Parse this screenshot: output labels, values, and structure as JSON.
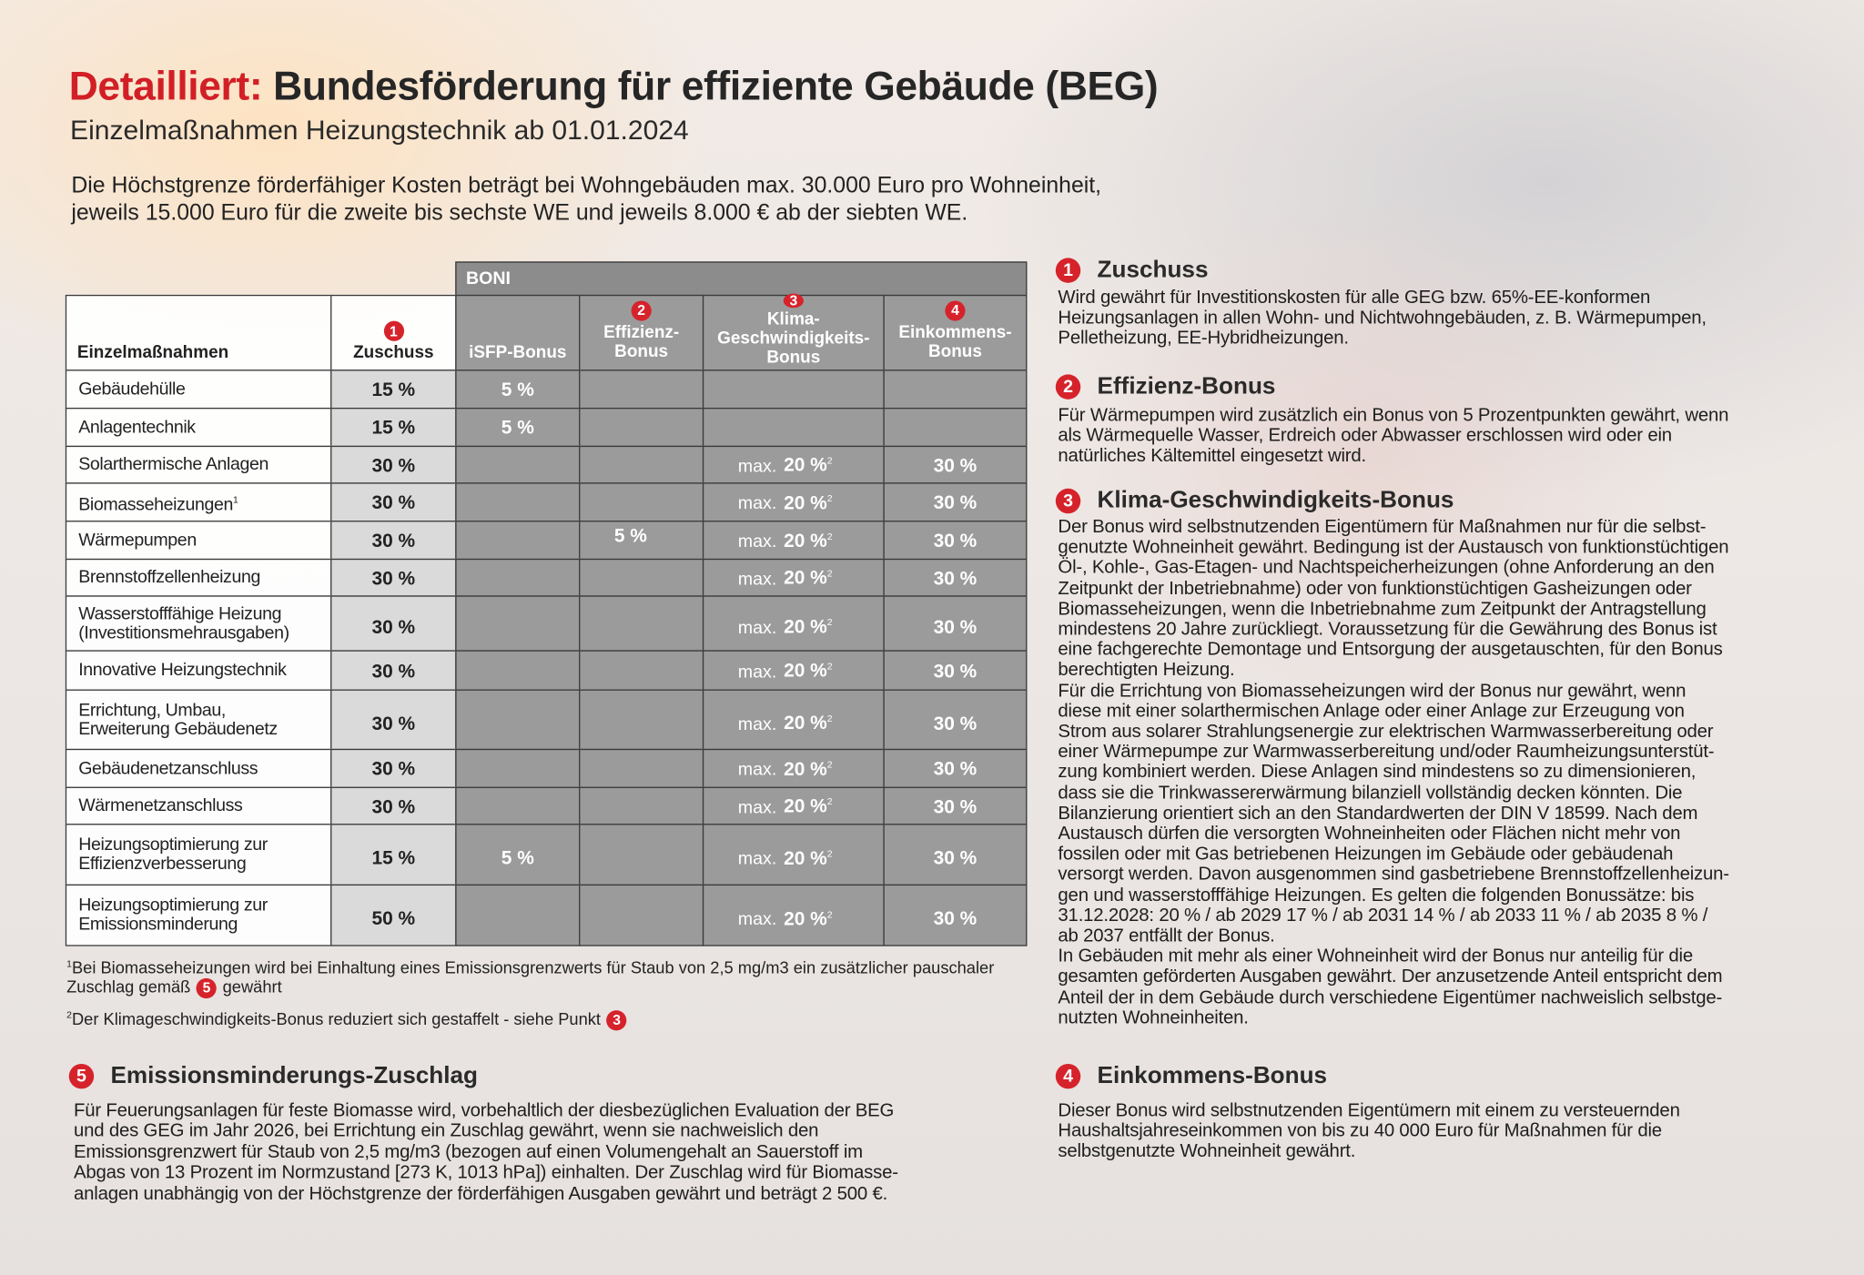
{
  "header": {
    "title_lead": "Detailliert:",
    "title": "Bundesförderung für effiziente Gebäude (BEG)",
    "subtitle": "Einzelmaßnahmen Heizungstechnik ab 01.01.2024",
    "intro": [
      "Die Höchstgrenze förderfähiger Kosten beträgt bei Wohngebäuden max. 30.000 Euro pro Wohneinheit,",
      "jeweils 15.000 Euro für die zweite bis sechste WE und jeweils 8.000 € ab der siebten WE."
    ]
  },
  "table": {
    "group_label": "BONI",
    "columns": [
      {
        "lines": [
          "Einzelmaßnahmen"
        ]
      },
      {
        "badge": "1",
        "lines": [
          "Zuschuss"
        ]
      },
      {
        "lines": [
          "iSFP-Bonus"
        ]
      },
      {
        "badge": "2",
        "lines": [
          "Effizienz-",
          "Bonus"
        ]
      },
      {
        "badge": "3",
        "lines": [
          "Klima-",
          "Geschwindigkeits-",
          "Bonus"
        ]
      },
      {
        "badge": "4",
        "lines": [
          "Einkommens-",
          "Bonus"
        ]
      }
    ],
    "rows": [
      {
        "name": [
          "Gebäudehülle"
        ],
        "zuschuss": "15 %",
        "isfp": "5 %"
      },
      {
        "name": [
          "Anlagentechnik"
        ],
        "zuschuss": "15 %",
        "isfp": "5 %"
      },
      {
        "name": [
          "Solarthermische Anlagen"
        ],
        "zuschuss": "30 %",
        "klima": {
          "prefix": "max.",
          "value": "20 %",
          "note": "2"
        },
        "einkommen": "30 %"
      },
      {
        "name": [
          "Biomasseheizungen"
        ],
        "note": "1",
        "zuschuss": "30 %",
        "klima": {
          "prefix": "max.",
          "value": "20 %",
          "note": "2"
        },
        "einkommen": "30 %"
      },
      {
        "name": [
          "Wärmepumpen"
        ],
        "zuschuss": "30 %",
        "effizienz": "5 %",
        "klima": {
          "prefix": "max.",
          "value": "20 %",
          "note": "2"
        },
        "einkommen": "30 %"
      },
      {
        "name": [
          "Brennstoffzellenheizung"
        ],
        "zuschuss": "30 %",
        "klima": {
          "prefix": "max.",
          "value": "20 %",
          "note": "2"
        },
        "einkommen": "30 %"
      },
      {
        "name": [
          "Wasserstofffähige Heizung",
          "(Investitionsmehrausgaben)"
        ],
        "zuschuss": "30 %",
        "klima": {
          "prefix": "max.",
          "value": "20 %",
          "note": "2"
        },
        "einkommen": "30 %"
      },
      {
        "name": [
          "Innovative Heizungstechnik"
        ],
        "zuschuss": "30 %",
        "klima": {
          "prefix": "max.",
          "value": "20 %",
          "note": "2"
        },
        "einkommen": "30 %"
      },
      {
        "name": [
          "Errichtung, Umbau,",
          "Erweiterung Gebäudenetz"
        ],
        "zuschuss": "30 %",
        "klima": {
          "prefix": "max.",
          "value": "20 %",
          "note": "2"
        },
        "einkommen": "30 %"
      },
      {
        "name": [
          "Gebäudenetzanschluss"
        ],
        "zuschuss": "30 %",
        "klima": {
          "prefix": "max.",
          "value": "20 %",
          "note": "2"
        },
        "einkommen": "30 %"
      },
      {
        "name": [
          "Wärmenetzanschluss"
        ],
        "zuschuss": "30 %",
        "klima": {
          "prefix": "max.",
          "value": "20 %",
          "note": "2"
        },
        "einkommen": "30 %"
      },
      {
        "name": [
          "Heizungsoptimierung zur",
          "Effizienzverbesserung"
        ],
        "zuschuss": "15 %",
        "isfp": "5 %",
        "klima": {
          "prefix": "max.",
          "value": "20 %",
          "note": "2"
        },
        "einkommen": "30 %"
      },
      {
        "name": [
          "Heizungsoptimierung zur",
          "Emissionsminderung"
        ],
        "zuschuss": "50 %",
        "klima": {
          "prefix": "max.",
          "value": "20 %",
          "note": "2"
        },
        "einkommen": "30 %"
      }
    ]
  },
  "footnotes": [
    {
      "mark": "1",
      "text": "Bei Biomasseheizungen wird bei Einhaltung eines Emissionsgrenzwerts für Staub von 2,5 mg/m3 ein zusätzlicher pauschaler",
      "continued": "Zuschlag gemäß",
      "badge": "5",
      "end": "gewährt"
    },
    {
      "mark": "2",
      "text": "Der Klimageschwindigkeits-Bonus reduziert sich gestaffelt - siehe Punkt",
      "badge": "3"
    }
  ],
  "sections": [
    {
      "badge": "1",
      "heading": "Zuschuss",
      "lines": [
        "Wird gewährt für Investitionskosten für alle GEG bzw. 65%-EE-konformen",
        "Heizungsanlagen in allen Wohn- und Nichtwohngebäuden, z. B. Wärmepumpen,",
        "Pelletheizung, EE-Hybridheizungen."
      ]
    },
    {
      "badge": "2",
      "heading": "Effizienz-Bonus",
      "lines": [
        "Für Wärmepumpen wird zusätzlich ein Bonus von 5 Prozentpunkten gewährt, wenn",
        "als Wärmequelle Wasser, Erdreich oder Abwasser erschlossen wird oder ein",
        "natürliches Kältemittel eingesetzt wird."
      ]
    },
    {
      "badge": "3",
      "heading": "Klima-Geschwindigkeits-Bonus",
      "lines": [
        "Der Bonus wird selbstnutzenden Eigentümern für Maßnahmen nur für die selbst-",
        "genutzte Wohneinheit gewährt. Bedingung ist der Austausch von funktionstüchtigen",
        "Öl-, Kohle-, Gas-Etagen- und Nachtspeicherheizungen (ohne Anforderung an den",
        "Zeitpunkt der Inbetriebnahme) oder von funktionstüchtigen Gasheizungen oder",
        "Biomasseheizungen, wenn die Inbetriebnahme zum Zeitpunkt der Antragstellung",
        "mindestens 20 Jahre zurückliegt. Voraussetzung für die Gewährung des Bonus ist",
        "eine fachgerechte Demontage und Entsorgung der ausgetauschten, für den Bonus",
        "berechtigten Heizung.",
        "Für die Errichtung von Biomasseheizungen wird der Bonus nur gewährt, wenn",
        "diese mit einer solarthermischen Anlage oder einer Anlage zur Erzeugung von",
        "Strom aus solarer Strahlungsenergie zur elektrischen Warmwasserbereitung oder",
        "einer Wärmepumpe zur Warmwasserbereitung und/oder Raumheizungsunterstüt-",
        "zung kombiniert werden. Diese Anlagen sind mindestens so zu dimensionieren,",
        "dass sie die Trinkwassererwärmung bilanziell vollständig decken könnten. Die",
        "Bilanzierung orientiert sich an den Standardwerten der DIN V 18599. Nach dem",
        "Austausch dürfen die versorgten Wohneinheiten oder Flächen nicht mehr von",
        "fossilen oder mit Gas betriebenen Heizungen im Gebäude oder gebäudenah",
        "versorgt werden. Davon ausgenommen sind gasbetriebene Brennstoffzellenheizun-",
        "gen und wasserstofffähige Heizungen. Es gelten die folgenden Bonussätze: bis",
        "31.12.2028: 20 % / ab 2029 17 % / ab 2031 14 % / ab 2033 11 % / ab 2035 8 % /",
        "ab 2037 entfällt der Bonus.",
        "In Gebäuden mit mehr als einer Wohneinheit wird der Bonus nur anteilig für die",
        "gesamten geförderten Ausgaben gewährt. Der anzusetzende Anteil entspricht dem",
        "Anteil der in dem Gebäude durch verschiedene Eigentümer nachweislich selbstge-",
        "nutzten Wohneinheiten."
      ]
    },
    {
      "badge": "4",
      "heading": "Einkommens-Bonus",
      "lines": [
        "Dieser Bonus wird selbstnutzenden Eigentümern mit einem zu versteuernden",
        "Haushaltsjahreseinkommen von bis zu 40 000 Euro für Maßnahmen für die",
        "selbstgenutzte Wohneinheit gewährt."
      ]
    },
    {
      "badge": "5",
      "heading": "Emissionsminderungs-Zuschlag",
      "lines": [
        "Für Feuerungsanlagen für feste Biomasse wird, vorbehaltlich der diesbezüglichen Evaluation der BEG",
        "und des GEG im Jahr 2026, bei Errichtung ein Zuschlag gewährt, wenn sie nachweislich den",
        "Emissionsgrenzwert für Staub von 2,5 mg/m3 (bezogen auf einen Volumengehalt an Sauerstoff im",
        "Abgas von 13 Prozent im Normzustand [273 K, 1013 hPa]) einhalten. Der Zuschlag wird für Biomasse-",
        "anlagen unabhängig von der Höchstgrenze der förderfähigen Ausgaben gewährt und beträgt 2 500 €."
      ]
    }
  ]
}
